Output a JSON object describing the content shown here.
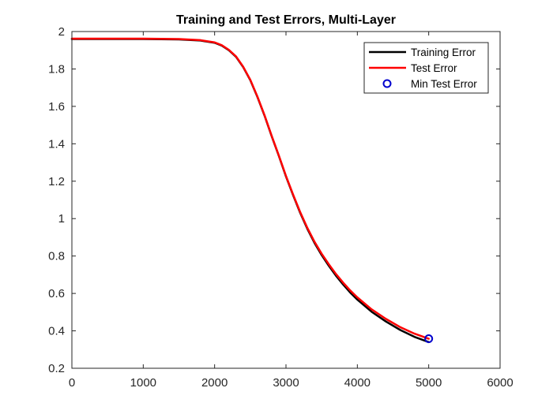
{
  "chart_data": {
    "type": "line",
    "title": "Training and Test Errors, Multi-Layer",
    "xlabel": "",
    "ylabel": "",
    "xlim": [
      0,
      6000
    ],
    "ylim": [
      0.2,
      2
    ],
    "xticks": [
      0,
      1000,
      2000,
      3000,
      4000,
      5000,
      6000
    ],
    "yticks": [
      0.2,
      0.4,
      0.6,
      0.8,
      1,
      1.2,
      1.4,
      1.6,
      1.8,
      2
    ],
    "x_tick_labels": [
      "0",
      "1000",
      "2000",
      "3000",
      "4000",
      "5000",
      "6000"
    ],
    "y_tick_labels": [
      "0.2",
      "0.4",
      "0.6",
      "0.8",
      "1",
      "1.2",
      "1.4",
      "1.6",
      "1.8",
      "2"
    ],
    "grid": false,
    "legend_position": "top-right",
    "series": [
      {
        "name": "Training Error",
        "color": "#000000",
        "style": "line",
        "x": [
          0,
          1000,
          1500,
          1800,
          2000,
          2100,
          2200,
          2300,
          2400,
          2500,
          2600,
          2700,
          2800,
          2900,
          3000,
          3100,
          3200,
          3300,
          3400,
          3500,
          3600,
          3700,
          3800,
          3900,
          4000,
          4200,
          4400,
          4600,
          4800,
          5000
        ],
        "y": [
          1.96,
          1.96,
          1.958,
          1.952,
          1.94,
          1.925,
          1.9,
          1.865,
          1.81,
          1.74,
          1.65,
          1.55,
          1.44,
          1.335,
          1.225,
          1.125,
          1.03,
          0.945,
          0.87,
          0.805,
          0.748,
          0.695,
          0.648,
          0.605,
          0.567,
          0.502,
          0.45,
          0.405,
          0.368,
          0.34
        ]
      },
      {
        "name": "Test Error",
        "color": "#ff0000",
        "style": "line",
        "x": [
          0,
          1000,
          1500,
          1800,
          2000,
          2100,
          2200,
          2300,
          2400,
          2500,
          2600,
          2700,
          2800,
          2900,
          3000,
          3100,
          3200,
          3300,
          3400,
          3500,
          3600,
          3700,
          3800,
          3900,
          4000,
          4200,
          4400,
          4600,
          4800,
          5000
        ],
        "y": [
          1.962,
          1.962,
          1.96,
          1.954,
          1.942,
          1.927,
          1.902,
          1.867,
          1.812,
          1.742,
          1.652,
          1.552,
          1.442,
          1.337,
          1.228,
          1.128,
          1.034,
          0.95,
          0.876,
          0.812,
          0.756,
          0.704,
          0.658,
          0.616,
          0.579,
          0.515,
          0.464,
          0.42,
          0.385,
          0.358
        ]
      },
      {
        "name": "Min Test Error",
        "color": "#0000cd",
        "style": "marker",
        "x": [
          5000
        ],
        "y": [
          0.358
        ]
      }
    ]
  }
}
